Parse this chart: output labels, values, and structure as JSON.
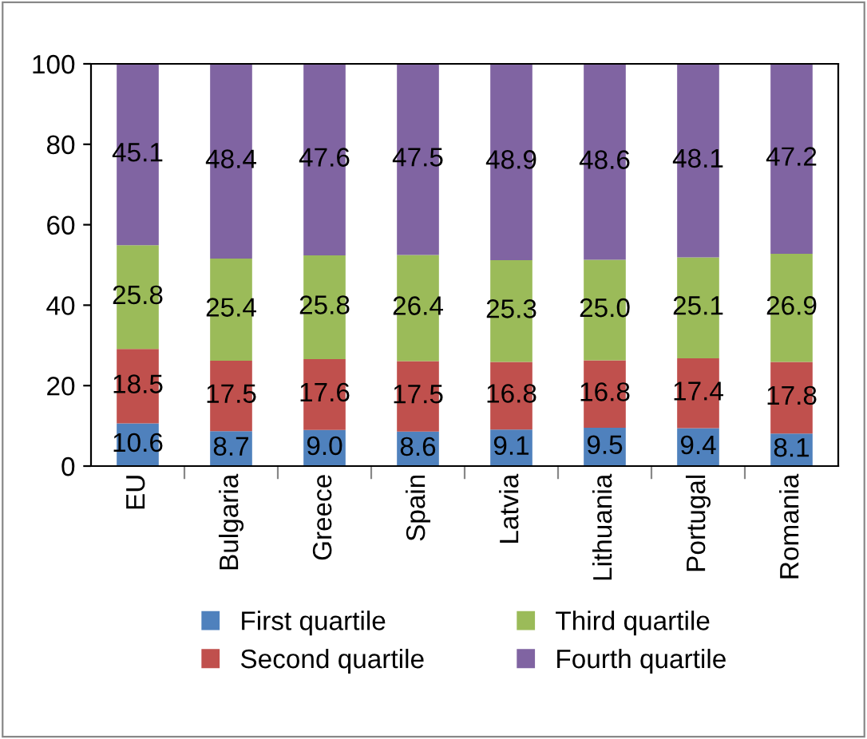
{
  "chart_data": {
    "type": "bar",
    "stacked": true,
    "categories": [
      "EU",
      "Bulgaria",
      "Greece",
      "Spain",
      "Latvia",
      "Lithuania",
      "Portugal",
      "Romania"
    ],
    "series": [
      {
        "name": "First quartile",
        "color": "#4f81bd",
        "values": [
          10.6,
          8.7,
          9.0,
          8.6,
          9.1,
          9.5,
          9.4,
          8.1
        ],
        "value_labels": [
          "10.6",
          "8.7",
          "9.0",
          "8.6",
          "9.1",
          "9.5",
          "9.4",
          "8.1"
        ]
      },
      {
        "name": "Second quartile",
        "color": "#c0504d",
        "values": [
          18.5,
          17.5,
          17.6,
          17.5,
          16.8,
          16.8,
          17.4,
          17.8
        ],
        "value_labels": [
          "18.5",
          "17.5",
          "17.6",
          "17.5",
          "16.8",
          "16.8",
          "17.4",
          "17.8"
        ]
      },
      {
        "name": "Third quartile",
        "color": "#9bbb59",
        "values": [
          25.8,
          25.4,
          25.8,
          26.4,
          25.3,
          25.0,
          25.1,
          26.9
        ],
        "value_labels": [
          "25.8",
          "25.4",
          "25.8",
          "26.4",
          "25.3",
          "25.0",
          "25.1",
          "26.9"
        ]
      },
      {
        "name": "Fourth quartile",
        "color": "#8064a2",
        "values": [
          45.1,
          48.4,
          47.6,
          47.5,
          48.9,
          48.6,
          48.1,
          47.2
        ],
        "value_labels": [
          "45.1",
          "48.4",
          "47.6",
          "47.5",
          "48.9",
          "48.6",
          "48.1",
          "47.2"
        ]
      }
    ],
    "ylim": [
      0,
      100
    ],
    "yticks": [
      0,
      20,
      40,
      60,
      80,
      100
    ],
    "grid": false,
    "legend": "bottom"
  }
}
